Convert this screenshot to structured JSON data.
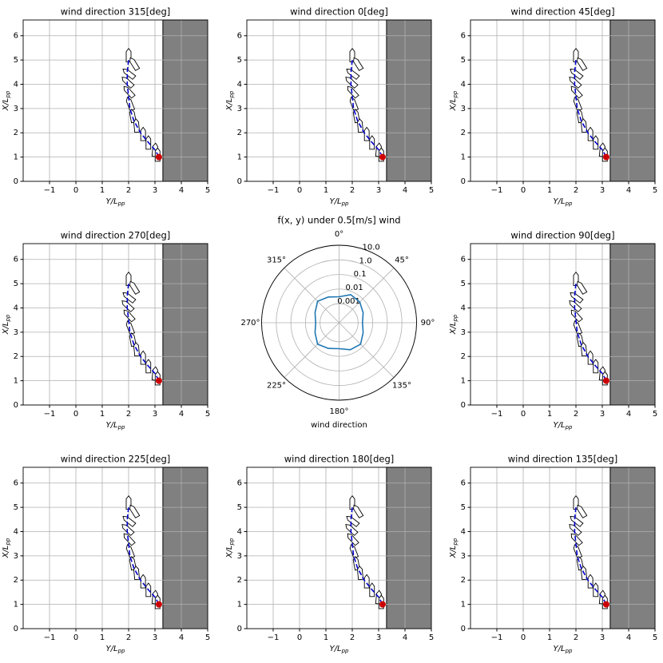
{
  "chart_data": [
    {
      "type": "line",
      "title": "wind direction 315[deg]",
      "xlabel": "Y/L",
      "xlabel_sub": "pp",
      "ylabel": "X/L",
      "ylabel_sub": "pp",
      "xlim": [
        -2,
        5
      ],
      "ylim": [
        0,
        6.65
      ],
      "xticks": [
        {
          "value": -1,
          "label": "−1"
        },
        0,
        1,
        2,
        3,
        4,
        5
      ],
      "yticks": [
        0,
        1,
        2,
        3,
        4,
        5,
        6
      ],
      "grid": true,
      "shade_x": [
        3.3,
        5
      ],
      "shade_color": "#808080",
      "series": [
        {
          "color": "#0000cc",
          "x": [
            2.0,
            1.95,
            1.95,
            2.0,
            2.05,
            2.2,
            2.45,
            2.75,
            3.0,
            3.15
          ],
          "values": [
            5.0,
            4.5,
            4.0,
            3.5,
            3.0,
            2.5,
            2.0,
            1.6,
            1.3,
            1.0
          ]
        }
      ],
      "end_point": {
        "x": 3.15,
        "y": 1.0,
        "color": "#cc0000"
      },
      "ships": {
        "x": [
          2.0,
          2.2,
          2.0,
          1.95,
          2.0,
          2.05,
          2.15,
          2.3,
          2.55,
          2.75,
          3.0,
          3.1
        ],
        "y": [
          5.2,
          4.85,
          4.45,
          4.1,
          3.7,
          3.2,
          2.7,
          2.3,
          1.95,
          1.6,
          1.3,
          1.1
        ],
        "heading": [
          0,
          -30,
          -50,
          -45,
          -40,
          -20,
          -10,
          -5,
          0,
          0,
          5,
          0
        ]
      }
    },
    {
      "type": "line",
      "title": "wind direction 0[deg]",
      "xlabel": "Y/L",
      "xlabel_sub": "pp",
      "ylabel": "X/L",
      "ylabel_sub": "pp",
      "xlim": [
        -2,
        5
      ],
      "ylim": [
        0,
        6.65
      ],
      "xticks": [
        {
          "value": -1,
          "label": "−1"
        },
        0,
        1,
        2,
        3,
        4,
        5
      ],
      "yticks": [
        0,
        1,
        2,
        3,
        4,
        5,
        6
      ],
      "grid": true,
      "shade_x": [
        3.3,
        5
      ],
      "shade_color": "#808080",
      "series": [
        {
          "color": "#0000cc",
          "x": [
            2.0,
            1.95,
            1.95,
            2.0,
            2.05,
            2.2,
            2.45,
            2.75,
            3.0,
            3.15
          ],
          "values": [
            5.0,
            4.5,
            4.0,
            3.5,
            3.0,
            2.5,
            2.0,
            1.6,
            1.3,
            1.0
          ]
        }
      ],
      "end_point": {
        "x": 3.15,
        "y": 1.0,
        "color": "#cc0000"
      },
      "ships": {
        "x": [
          2.0,
          2.2,
          2.0,
          1.95,
          2.0,
          2.05,
          2.15,
          2.3,
          2.55,
          2.75,
          3.0,
          3.1
        ],
        "y": [
          5.2,
          4.85,
          4.45,
          4.1,
          3.7,
          3.2,
          2.7,
          2.3,
          1.95,
          1.6,
          1.3,
          1.1
        ],
        "heading": [
          0,
          -30,
          -50,
          -45,
          -40,
          -20,
          -10,
          -5,
          0,
          0,
          5,
          0
        ]
      }
    },
    {
      "type": "line",
      "title": "wind direction 45[deg]",
      "xlabel": "Y/L",
      "xlabel_sub": "pp",
      "ylabel": "X/L",
      "ylabel_sub": "pp",
      "xlim": [
        -2,
        5
      ],
      "ylim": [
        0,
        6.65
      ],
      "xticks": [
        {
          "value": -1,
          "label": "−1"
        },
        0,
        1,
        2,
        3,
        4,
        5
      ],
      "yticks": [
        0,
        1,
        2,
        3,
        4,
        5,
        6
      ],
      "grid": true,
      "shade_x": [
        3.3,
        5
      ],
      "shade_color": "#808080",
      "series": [
        {
          "color": "#0000cc",
          "x": [
            2.0,
            1.95,
            1.95,
            2.0,
            2.05,
            2.2,
            2.45,
            2.75,
            3.0,
            3.15
          ],
          "values": [
            5.0,
            4.5,
            4.0,
            3.5,
            3.0,
            2.5,
            2.0,
            1.6,
            1.3,
            1.0
          ]
        }
      ],
      "end_point": {
        "x": 3.15,
        "y": 1.0,
        "color": "#cc0000"
      },
      "ships": {
        "x": [
          2.0,
          2.2,
          2.0,
          1.95,
          2.0,
          2.05,
          2.15,
          2.3,
          2.55,
          2.75,
          3.0,
          3.1
        ],
        "y": [
          5.2,
          4.85,
          4.45,
          4.1,
          3.7,
          3.2,
          2.7,
          2.3,
          1.95,
          1.6,
          1.3,
          1.1
        ],
        "heading": [
          0,
          -30,
          -50,
          -45,
          -40,
          -20,
          -10,
          -5,
          0,
          0,
          5,
          0
        ]
      }
    },
    {
      "type": "line",
      "title": "wind direction 270[deg]",
      "xlabel": "Y/L",
      "xlabel_sub": "pp",
      "ylabel": "X/L",
      "ylabel_sub": "pp",
      "xlim": [
        -2,
        5
      ],
      "ylim": [
        0,
        6.65
      ],
      "xticks": [
        {
          "value": -1,
          "label": "−1"
        },
        0,
        1,
        2,
        3,
        4,
        5
      ],
      "yticks": [
        0,
        1,
        2,
        3,
        4,
        5,
        6
      ],
      "grid": true,
      "shade_x": [
        3.3,
        5
      ],
      "shade_color": "#808080",
      "series": [
        {
          "color": "#0000cc",
          "x": [
            2.0,
            1.95,
            1.95,
            2.0,
            2.05,
            2.2,
            2.45,
            2.75,
            3.0,
            3.15
          ],
          "values": [
            5.0,
            4.5,
            4.0,
            3.5,
            3.0,
            2.5,
            2.0,
            1.6,
            1.3,
            1.0
          ]
        }
      ],
      "end_point": {
        "x": 3.15,
        "y": 1.0,
        "color": "#cc0000"
      },
      "ships": {
        "x": [
          2.0,
          2.2,
          2.0,
          1.95,
          2.0,
          2.05,
          2.15,
          2.3,
          2.55,
          2.75,
          3.0,
          3.1
        ],
        "y": [
          5.2,
          4.85,
          4.45,
          4.1,
          3.7,
          3.2,
          2.7,
          2.3,
          1.95,
          1.6,
          1.3,
          1.1
        ],
        "heading": [
          0,
          -30,
          -50,
          -45,
          -40,
          -20,
          -10,
          -5,
          0,
          0,
          5,
          0
        ]
      }
    },
    {
      "type": "polar",
      "title": "f(x, y) under 0.5[m/s] wind",
      "xlabel": "wind direction",
      "theta_ticks": [
        {
          "value": 0,
          "label": "0°"
        },
        {
          "value": 45,
          "label": "45°"
        },
        {
          "value": 90,
          "label": "90°"
        },
        {
          "value": 135,
          "label": "135°"
        },
        {
          "value": 180,
          "label": "180°"
        },
        {
          "value": 225,
          "label": "225°"
        },
        {
          "value": 270,
          "label": "270°"
        },
        {
          "value": 315,
          "label": "315°"
        }
      ],
      "rlim": [
        5e-05,
        10
      ],
      "rscale": "log",
      "rticks": [
        0.001,
        0.01,
        0.1,
        {
          "value": 1,
          "label": "1.0"
        },
        {
          "value": 10,
          "label": "10.0"
        }
      ],
      "grid": true,
      "series": [
        {
          "color": "#1f77b4",
          "theta": [
            0,
            22.5,
            45,
            67.5,
            90,
            112.5,
            135,
            157.5,
            180,
            202.5,
            225,
            247.5,
            270,
            292.5,
            315,
            337.5
          ],
          "values": [
            0.003,
            0.006,
            0.005,
            0.003,
            0.002,
            0.003,
            0.006,
            0.005,
            0.003,
            0.004,
            0.006,
            0.003,
            0.002,
            0.003,
            0.006,
            0.004
          ]
        }
      ]
    },
    {
      "type": "line",
      "title": "wind direction 90[deg]",
      "xlabel": "Y/L",
      "xlabel_sub": "pp",
      "ylabel": "X/L",
      "ylabel_sub": "pp",
      "xlim": [
        -2,
        5
      ],
      "ylim": [
        0,
        6.65
      ],
      "xticks": [
        {
          "value": -1,
          "label": "−1"
        },
        0,
        1,
        2,
        3,
        4,
        5
      ],
      "yticks": [
        0,
        1,
        2,
        3,
        4,
        5,
        6
      ],
      "grid": true,
      "shade_x": [
        3.3,
        5
      ],
      "shade_color": "#808080",
      "series": [
        {
          "color": "#0000cc",
          "x": [
            2.0,
            1.95,
            1.95,
            2.0,
            2.05,
            2.2,
            2.45,
            2.75,
            3.0,
            3.15
          ],
          "values": [
            5.0,
            4.5,
            4.0,
            3.5,
            3.0,
            2.5,
            2.0,
            1.6,
            1.3,
            1.0
          ]
        }
      ],
      "end_point": {
        "x": 3.15,
        "y": 1.0,
        "color": "#cc0000"
      },
      "ships": {
        "x": [
          2.0,
          2.2,
          2.0,
          1.95,
          2.0,
          2.05,
          2.15,
          2.3,
          2.55,
          2.75,
          3.0,
          3.1
        ],
        "y": [
          5.2,
          4.85,
          4.45,
          4.1,
          3.7,
          3.2,
          2.7,
          2.3,
          1.95,
          1.6,
          1.3,
          1.1
        ],
        "heading": [
          0,
          -30,
          -50,
          -45,
          -40,
          -20,
          -10,
          -5,
          0,
          0,
          5,
          0
        ]
      }
    },
    {
      "type": "line",
      "title": "wind direction 225[deg]",
      "xlabel": "Y/L",
      "xlabel_sub": "pp",
      "ylabel": "X/L",
      "ylabel_sub": "pp",
      "xlim": [
        -2,
        5
      ],
      "ylim": [
        0,
        6.65
      ],
      "xticks": [
        {
          "value": -1,
          "label": "−1"
        },
        0,
        1,
        2,
        3,
        4,
        5
      ],
      "yticks": [
        0,
        1,
        2,
        3,
        4,
        5,
        6
      ],
      "grid": true,
      "shade_x": [
        3.3,
        5
      ],
      "shade_color": "#808080",
      "series": [
        {
          "color": "#0000cc",
          "x": [
            2.0,
            1.95,
            1.95,
            2.0,
            2.05,
            2.2,
            2.45,
            2.75,
            3.0,
            3.15
          ],
          "values": [
            5.0,
            4.5,
            4.0,
            3.5,
            3.0,
            2.5,
            2.0,
            1.6,
            1.3,
            1.0
          ]
        }
      ],
      "end_point": {
        "x": 3.15,
        "y": 1.0,
        "color": "#cc0000"
      },
      "ships": {
        "x": [
          2.0,
          2.2,
          2.0,
          1.95,
          2.0,
          2.05,
          2.15,
          2.3,
          2.55,
          2.75,
          3.0,
          3.1
        ],
        "y": [
          5.2,
          4.85,
          4.45,
          4.1,
          3.7,
          3.2,
          2.7,
          2.3,
          1.95,
          1.6,
          1.3,
          1.1
        ],
        "heading": [
          0,
          -30,
          -50,
          -45,
          -40,
          -20,
          -10,
          -5,
          0,
          0,
          5,
          0
        ]
      }
    },
    {
      "type": "line",
      "title": "wind direction 180[deg]",
      "xlabel": "Y/L",
      "xlabel_sub": "pp",
      "ylabel": "X/L",
      "ylabel_sub": "pp",
      "xlim": [
        -2,
        5
      ],
      "ylim": [
        0,
        6.65
      ],
      "xticks": [
        {
          "value": -1,
          "label": "−1"
        },
        0,
        1,
        2,
        3,
        4,
        5
      ],
      "yticks": [
        0,
        1,
        2,
        3,
        4,
        5,
        6
      ],
      "grid": true,
      "shade_x": [
        3.3,
        5
      ],
      "shade_color": "#808080",
      "series": [
        {
          "color": "#0000cc",
          "x": [
            2.0,
            1.95,
            1.95,
            2.0,
            2.05,
            2.2,
            2.45,
            2.75,
            3.0,
            3.15
          ],
          "values": [
            5.0,
            4.5,
            4.0,
            3.5,
            3.0,
            2.5,
            2.0,
            1.6,
            1.3,
            1.0
          ]
        }
      ],
      "end_point": {
        "x": 3.15,
        "y": 1.0,
        "color": "#cc0000"
      },
      "ships": {
        "x": [
          2.0,
          2.2,
          2.0,
          1.95,
          2.0,
          2.05,
          2.15,
          2.3,
          2.55,
          2.75,
          3.0,
          3.1
        ],
        "y": [
          5.2,
          4.85,
          4.45,
          4.1,
          3.7,
          3.2,
          2.7,
          2.3,
          1.95,
          1.6,
          1.3,
          1.1
        ],
        "heading": [
          0,
          -30,
          -50,
          -45,
          -40,
          -20,
          -10,
          -5,
          0,
          0,
          5,
          0
        ]
      }
    },
    {
      "type": "line",
      "title": "wind direction 135[deg]",
      "xlabel": "Y/L",
      "xlabel_sub": "pp",
      "ylabel": "X/L",
      "ylabel_sub": "pp",
      "xlim": [
        -2,
        5
      ],
      "ylim": [
        0,
        6.65
      ],
      "xticks": [
        {
          "value": -1,
          "label": "−1"
        },
        0,
        1,
        2,
        3,
        4,
        5
      ],
      "yticks": [
        0,
        1,
        2,
        3,
        4,
        5,
        6
      ],
      "grid": true,
      "shade_x": [
        3.3,
        5
      ],
      "shade_color": "#808080",
      "series": [
        {
          "color": "#0000cc",
          "x": [
            2.0,
            1.95,
            1.95,
            2.0,
            2.05,
            2.2,
            2.45,
            2.75,
            3.0,
            3.15
          ],
          "values": [
            5.0,
            4.5,
            4.0,
            3.5,
            3.0,
            2.5,
            2.0,
            1.6,
            1.3,
            1.0
          ]
        }
      ],
      "end_point": {
        "x": 3.15,
        "y": 1.0,
        "color": "#cc0000"
      },
      "ships": {
        "x": [
          2.0,
          2.2,
          2.0,
          1.95,
          2.0,
          2.05,
          2.15,
          2.3,
          2.55,
          2.75,
          3.0,
          3.1
        ],
        "y": [
          5.2,
          4.85,
          4.45,
          4.1,
          3.7,
          3.2,
          2.7,
          2.3,
          1.95,
          1.6,
          1.3,
          1.1
        ],
        "heading": [
          0,
          -30,
          -50,
          -45,
          -40,
          -20,
          -10,
          -5,
          0,
          0,
          5,
          0
        ]
      }
    }
  ]
}
